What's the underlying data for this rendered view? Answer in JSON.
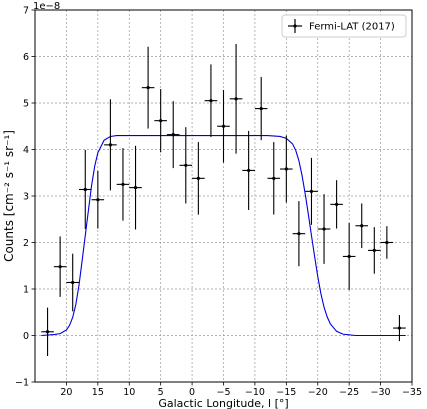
{
  "chart_data": {
    "type": "scatter",
    "title": "",
    "xlabel": "Galactic Longitude, l [°]",
    "ylabel": "Counts [cm⁻² s⁻¹ sr⁻¹]",
    "y_multiplier_label": "1e−8",
    "x_reversed": true,
    "xlim": [
      25,
      -35
    ],
    "ylim": [
      -1,
      7
    ],
    "xticks": [
      20,
      15,
      10,
      5,
      0,
      -5,
      -10,
      -15,
      -20,
      -25,
      -30,
      -35
    ],
    "xtick_labels": [
      "20",
      "15",
      "10",
      "5",
      "0",
      "−5",
      "−10",
      "−15",
      "−20",
      "−25",
      "−30",
      "−35"
    ],
    "yticks": [
      -1,
      0,
      1,
      2,
      3,
      4,
      5,
      6,
      7
    ],
    "ytick_labels": [
      "−1",
      "0",
      "1",
      "2",
      "3",
      "4",
      "5",
      "6",
      "7"
    ],
    "grid": true,
    "legend_position": "top-right",
    "series": [
      {
        "name": "Fermi-LAT (2017)",
        "kind": "errorbar",
        "color": "#000000",
        "xerr": 1,
        "points": [
          {
            "x": 23,
            "y": 0.08,
            "yerr": 0.52
          },
          {
            "x": 21,
            "y": 1.48,
            "yerr": 0.65
          },
          {
            "x": 19,
            "y": 1.14,
            "yerr": 0.62
          },
          {
            "x": 17,
            "y": 3.14,
            "yerr": 0.85
          },
          {
            "x": 15,
            "y": 2.92,
            "yerr": 0.62
          },
          {
            "x": 13,
            "y": 4.1,
            "yerr": 0.98
          },
          {
            "x": 11,
            "y": 3.25,
            "yerr": 0.78
          },
          {
            "x": 9,
            "y": 3.18,
            "yerr": 0.9
          },
          {
            "x": 7,
            "y": 5.33,
            "yerr": 0.88
          },
          {
            "x": 5,
            "y": 4.62,
            "yerr": 0.68
          },
          {
            "x": 3,
            "y": 4.32,
            "yerr": 0.72
          },
          {
            "x": 1,
            "y": 3.66,
            "yerr": 0.82
          },
          {
            "x": -1,
            "y": 3.38,
            "yerr": 0.78
          },
          {
            "x": -3,
            "y": 5.05,
            "yerr": 0.78
          },
          {
            "x": -5,
            "y": 4.5,
            "yerr": 0.78
          },
          {
            "x": -7,
            "y": 5.09,
            "yerr": 1.18
          },
          {
            "x": -9,
            "y": 3.55,
            "yerr": 0.85
          },
          {
            "x": -11,
            "y": 4.88,
            "yerr": 0.68
          },
          {
            "x": -13,
            "y": 3.38,
            "yerr": 0.78
          },
          {
            "x": -15,
            "y": 3.58,
            "yerr": 0.72
          },
          {
            "x": -17,
            "y": 2.19,
            "yerr": 0.7
          },
          {
            "x": -19,
            "y": 3.1,
            "yerr": 0.72
          },
          {
            "x": -21,
            "y": 2.29,
            "yerr": 0.75
          },
          {
            "x": -23,
            "y": 2.82,
            "yerr": 0.52
          },
          {
            "x": -25,
            "y": 1.7,
            "yerr": 0.72
          },
          {
            "x": -27,
            "y": 2.36,
            "yerr": 0.48
          },
          {
            "x": -29,
            "y": 1.83,
            "yerr": 0.5
          },
          {
            "x": -31,
            "y": 2.0,
            "yerr": 0.35
          },
          {
            "x": -33,
            "y": 0.16,
            "yerr": 0.28
          }
        ]
      },
      {
        "kind": "line",
        "color": "#0000dd",
        "x": [
          24,
          22,
          21,
          20,
          19.5,
          19,
          18.5,
          18,
          17.5,
          17,
          16.5,
          16,
          15.5,
          15,
          14,
          13,
          12,
          10,
          0,
          -10,
          -12,
          -14,
          -15,
          -16,
          -16.5,
          -17,
          -17.5,
          -18,
          -18.5,
          -19,
          -19.5,
          -20,
          -20.5,
          -21,
          -21.5,
          -22,
          -23,
          -24,
          -26,
          -30,
          -34
        ],
        "y": [
          0.0,
          0.02,
          0.04,
          0.12,
          0.22,
          0.39,
          0.67,
          1.08,
          1.61,
          2.15,
          2.69,
          3.22,
          3.64,
          3.93,
          4.2,
          4.28,
          4.3,
          4.3,
          4.3,
          4.3,
          4.3,
          4.28,
          4.24,
          4.12,
          3.98,
          3.76,
          3.44,
          3.05,
          2.61,
          2.15,
          1.7,
          1.27,
          0.9,
          0.61,
          0.4,
          0.25,
          0.09,
          0.03,
          0.0,
          0.0,
          0.0
        ]
      }
    ]
  }
}
